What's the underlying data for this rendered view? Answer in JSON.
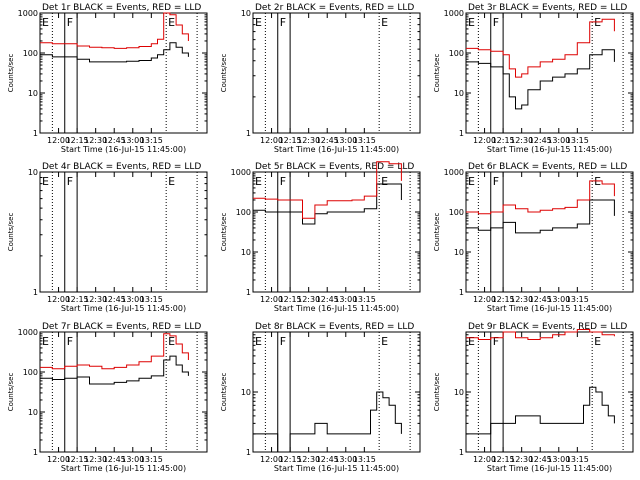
{
  "chart_data": [
    {
      "type": "line",
      "title": "Det 1r BLACK = Events, RED = LLD",
      "ylabel": "Counts/sec",
      "xlabel": "Start Time (16-Jul-15 11:45:00)",
      "yscale": "log",
      "ylim": [
        1,
        1000
      ],
      "yticks": [
        "1",
        "10",
        "100",
        "1000"
      ],
      "xticks": [
        "12:00",
        "12:15",
        "12:30",
        "12:45",
        "13:00",
        "13:15"
      ],
      "markers": [
        {
          "label": "E"
        },
        {
          "label": "F"
        },
        {
          "label": "E"
        }
      ],
      "series": [
        {
          "color": "#000000",
          "x": [
            0,
            10,
            30,
            40,
            50,
            60,
            70,
            80,
            90,
            95,
            100,
            105,
            110,
            115,
            120
          ],
          "values": [
            90,
            80,
            70,
            60,
            60,
            60,
            62,
            65,
            75,
            90,
            120,
            180,
            140,
            100,
            80
          ]
        },
        {
          "color": "#dd0000",
          "x": [
            0,
            10,
            30,
            40,
            50,
            60,
            70,
            80,
            90,
            95,
            100,
            105,
            110,
            115,
            120
          ],
          "values": [
            180,
            170,
            150,
            140,
            135,
            130,
            135,
            145,
            170,
            220,
            1000,
            900,
            500,
            300,
            200
          ]
        }
      ]
    },
    {
      "type": "line",
      "title": "Det 2r BLACK = Events, RED = LLD",
      "ylabel": "Counts/sec",
      "xlabel": "Start Time (16-Jul-15 11:45:00)",
      "yscale": "log",
      "ylim": [
        1,
        10
      ],
      "yticks": [
        "1",
        "10"
      ],
      "xticks": [
        "12:00",
        "12:15",
        "12:30",
        "12:45",
        "13:00",
        "13:15"
      ],
      "markers": [
        {
          "label": "E"
        },
        {
          "label": "F"
        },
        {
          "label": "E"
        }
      ],
      "series": []
    },
    {
      "type": "line",
      "title": "Det 3r BLACK = Events, RED = LLD",
      "ylabel": "Counts/sec",
      "xlabel": "Start Time (16-Jul-15 11:45:00)",
      "yscale": "log",
      "ylim": [
        1,
        1000
      ],
      "yticks": [
        "1",
        "10",
        "100",
        "1000"
      ],
      "xticks": [
        "12:00",
        "12:15",
        "12:30",
        "12:45",
        "13:00",
        "13:15"
      ],
      "markers": [
        {
          "label": "E"
        },
        {
          "label": "F"
        },
        {
          "label": "E"
        }
      ],
      "series": [
        {
          "color": "#000000",
          "x": [
            0,
            10,
            20,
            30,
            35,
            40,
            45,
            50,
            60,
            70,
            80,
            90,
            100,
            110,
            120
          ],
          "values": [
            60,
            55,
            45,
            30,
            8,
            4,
            5,
            12,
            20,
            25,
            30,
            40,
            90,
            120,
            60
          ]
        },
        {
          "color": "#dd0000",
          "x": [
            0,
            10,
            20,
            30,
            35,
            40,
            45,
            50,
            60,
            70,
            80,
            90,
            100,
            110,
            120
          ],
          "values": [
            130,
            120,
            110,
            90,
            40,
            25,
            30,
            45,
            60,
            70,
            90,
            180,
            600,
            700,
            350
          ]
        }
      ]
    },
    {
      "type": "line",
      "title": "Det 4r BLACK = Events, RED = LLD",
      "ylabel": "Counts/sec",
      "xlabel": "Start Time (16-Jul-15 11:45:00)",
      "yscale": "log",
      "ylim": [
        1,
        10
      ],
      "yticks": [
        "1",
        "10"
      ],
      "xticks": [
        "12:00",
        "12:15",
        "12:30",
        "12:45",
        "13:00",
        "13:15"
      ],
      "markers": [
        {
          "label": "E"
        },
        {
          "label": "F"
        },
        {
          "label": "E"
        }
      ],
      "series": []
    },
    {
      "type": "line",
      "title": "Det 5r BLACK = Events, RED = LLD",
      "ylabel": "Counts/sec",
      "xlabel": "Start Time (16-Jul-15 11:45:00)",
      "yscale": "log",
      "ylim": [
        1,
        1000
      ],
      "yticks": [
        "1",
        "10",
        "100",
        "1000"
      ],
      "xticks": [
        "12:00",
        "12:15",
        "12:30",
        "12:45",
        "13:00",
        "13:15"
      ],
      "markers": [
        {
          "label": "E"
        },
        {
          "label": "F"
        },
        {
          "label": "E"
        }
      ],
      "series": [
        {
          "color": "#000000",
          "x": [
            0,
            10,
            20,
            30,
            40,
            50,
            60,
            70,
            80,
            90,
            100,
            110,
            120
          ],
          "values": [
            110,
            100,
            100,
            100,
            50,
            90,
            100,
            100,
            100,
            120,
            500,
            500,
            200
          ]
        },
        {
          "color": "#dd0000",
          "x": [
            0,
            10,
            20,
            30,
            40,
            50,
            60,
            70,
            80,
            90,
            100,
            110,
            120
          ],
          "values": [
            220,
            210,
            200,
            200,
            70,
            150,
            190,
            190,
            200,
            250,
            1800,
            1600,
            600
          ]
        }
      ]
    },
    {
      "type": "line",
      "title": "Det 6r BLACK = Events, RED = LLD",
      "ylabel": "Counts/sec",
      "xlabel": "Start Time (16-Jul-15 11:45:00)",
      "yscale": "log",
      "ylim": [
        1,
        1000
      ],
      "yticks": [
        "1",
        "10",
        "100",
        "1000"
      ],
      "xticks": [
        "12:00",
        "12:15",
        "12:30",
        "12:45",
        "13:00",
        "13:15"
      ],
      "markers": [
        {
          "label": "E"
        },
        {
          "label": "F"
        },
        {
          "label": "E"
        }
      ],
      "series": [
        {
          "color": "#000000",
          "x": [
            0,
            10,
            20,
            30,
            40,
            50,
            60,
            70,
            80,
            90,
            100,
            110,
            120
          ],
          "values": [
            40,
            35,
            40,
            55,
            30,
            30,
            35,
            40,
            40,
            50,
            200,
            200,
            80
          ]
        },
        {
          "color": "#dd0000",
          "x": [
            0,
            10,
            20,
            30,
            40,
            50,
            60,
            70,
            80,
            90,
            100,
            110,
            120
          ],
          "values": [
            100,
            90,
            100,
            150,
            120,
            100,
            110,
            120,
            130,
            200,
            600,
            500,
            250
          ]
        }
      ]
    },
    {
      "type": "line",
      "title": "Det 7r BLACK = Events, RED = LLD",
      "ylabel": "Counts/sec",
      "xlabel": "Start Time (16-Jul-15 11:45:00)",
      "yscale": "log",
      "ylim": [
        1,
        1000
      ],
      "yticks": [
        "1",
        "10",
        "100",
        "1000"
      ],
      "xticks": [
        "12:00",
        "12:15",
        "12:30",
        "12:45",
        "13:00",
        "13:15"
      ],
      "markers": [
        {
          "label": "E"
        },
        {
          "label": "F"
        },
        {
          "label": "E"
        }
      ],
      "series": [
        {
          "color": "#000000",
          "x": [
            0,
            10,
            20,
            30,
            40,
            50,
            60,
            70,
            80,
            90,
            100,
            105,
            110,
            115,
            120
          ],
          "values": [
            70,
            65,
            70,
            75,
            50,
            50,
            55,
            60,
            70,
            80,
            200,
            250,
            150,
            100,
            80
          ]
        },
        {
          "color": "#dd0000",
          "x": [
            0,
            10,
            20,
            30,
            40,
            50,
            60,
            70,
            80,
            90,
            100,
            105,
            110,
            115,
            120
          ],
          "values": [
            130,
            120,
            140,
            150,
            140,
            120,
            130,
            150,
            180,
            250,
            900,
            800,
            500,
            300,
            200
          ]
        }
      ]
    },
    {
      "type": "line",
      "title": "Det 8r BLACK = Events, RED = LLD",
      "ylabel": "Counts/sec",
      "xlabel": "Start Time (16-Jul-15 11:45:00)",
      "yscale": "log",
      "ylim": [
        1,
        100
      ],
      "yticks": [
        "1",
        "10"
      ],
      "xticks": [
        "12:00",
        "12:15",
        "12:30",
        "12:45",
        "13:00",
        "13:15"
      ],
      "markers": [
        {
          "label": "E"
        },
        {
          "label": "F"
        },
        {
          "label": "E"
        }
      ],
      "series": [
        {
          "color": "#000000",
          "x": [
            0,
            10,
            20,
            30,
            40,
            50,
            60,
            70,
            80,
            90,
            95,
            100,
            105,
            110,
            115,
            120
          ],
          "values": [
            2,
            2,
            1,
            2,
            2,
            3,
            2,
            2,
            2,
            2,
            5,
            10,
            8,
            6,
            3,
            2
          ]
        }
      ]
    },
    {
      "type": "line",
      "title": "Det 9r BLACK = Events, RED = LLD",
      "ylabel": "Counts/sec",
      "xlabel": "Start Time (16-Jul-15 11:45:00)",
      "yscale": "log",
      "ylim": [
        1,
        100
      ],
      "yticks": [
        "1",
        "10"
      ],
      "xticks": [
        "12:00",
        "12:15",
        "12:30",
        "12:45",
        "13:00",
        "13:15"
      ],
      "markers": [
        {
          "label": "E"
        },
        {
          "label": "F"
        },
        {
          "label": "E"
        }
      ],
      "series": [
        {
          "color": "#000000",
          "x": [
            0,
            10,
            20,
            30,
            40,
            50,
            60,
            70,
            80,
            90,
            95,
            100,
            105,
            110,
            115,
            120
          ],
          "values": [
            2,
            2,
            3,
            3,
            4,
            4,
            3,
            3,
            3,
            3,
            6,
            12,
            10,
            6,
            4,
            3
          ]
        },
        {
          "color": "#dd0000",
          "x": [
            0,
            10,
            20,
            30,
            40,
            50,
            60,
            70,
            80,
            90,
            100,
            110,
            120
          ],
          "values": [
            80,
            75,
            80,
            100,
            80,
            75,
            80,
            90,
            100,
            110,
            100,
            90,
            85
          ]
        }
      ]
    }
  ]
}
